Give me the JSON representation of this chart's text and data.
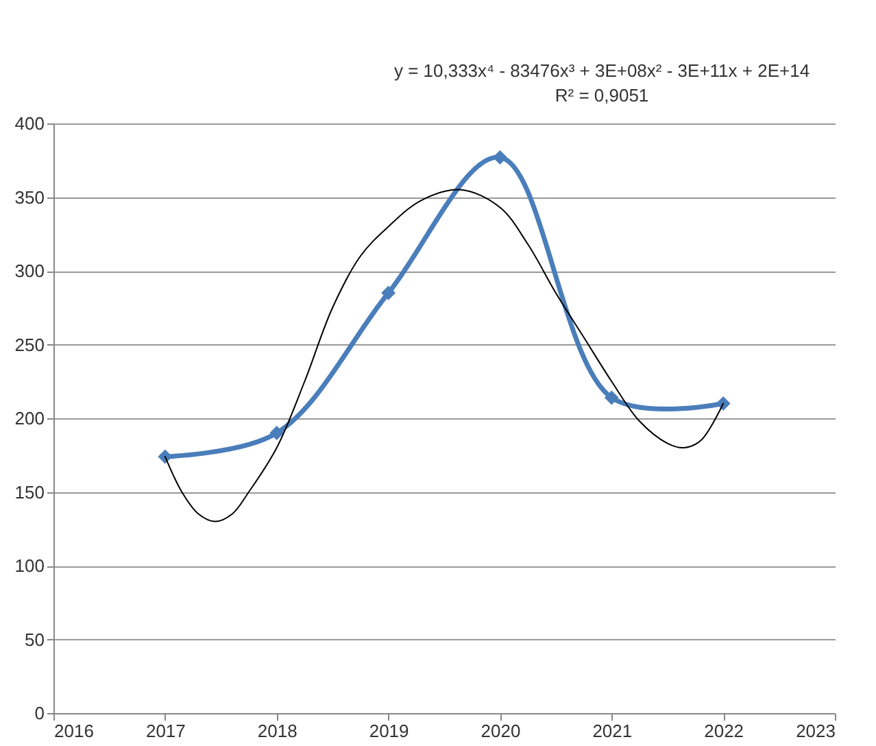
{
  "chart_data": {
    "type": "line",
    "x": [
      2017,
      2018,
      2019,
      2020,
      2021,
      2022
    ],
    "series": [
      {
        "color": "#4a7ebb",
        "values": [
          174,
          190,
          285,
          377,
          214,
          210
        ]
      },
      {
        "type": "line",
        "color": "#000000",
        "marker": "none",
        "x": [
          2017,
          2017.15,
          2017.3,
          2017.45,
          2017.6,
          2017.75,
          2018,
          2018.25,
          2018.5,
          2018.75,
          2019,
          2019.3,
          2019.65,
          2020,
          2020.25,
          2020.5,
          2020.75,
          2021,
          2021.25,
          2021.5,
          2021.65,
          2021.8,
          2022
        ],
        "values": [
          174,
          150,
          135,
          130,
          135,
          150,
          180,
          225,
          275,
          310,
          330,
          348,
          355,
          343,
          318,
          285,
          255,
          225,
          198,
          183,
          180,
          185,
          210
        ]
      }
    ],
    "annotations": [
      "y = 10,333x⁴ - 83476x³ + 3E+08x² - 3E+11x + 2E+14",
      "R² = 0,9051"
    ],
    "xlim": [
      2016,
      2023
    ],
    "xticks": [
      2016,
      2017,
      2018,
      2019,
      2020,
      2021,
      2022,
      2023
    ],
    "ylim": [
      0,
      400
    ],
    "yticks": [
      0,
      50,
      100,
      150,
      200,
      250,
      300,
      350,
      400
    ],
    "grid": "y",
    "marker": "diamond",
    "line_style": "solid"
  }
}
